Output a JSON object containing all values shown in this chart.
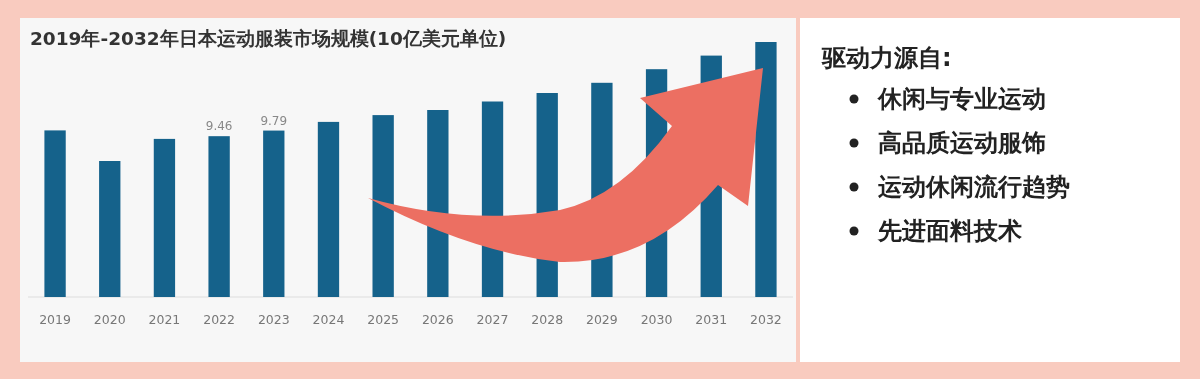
{
  "chart_data": [
    {
      "type": "bar",
      "title": "2019年-2032年日本运动服装市场规模(10亿美元单位)",
      "categories": [
        "2019",
        "2020",
        "2021",
        "2022",
        "2023",
        "2024",
        "2025",
        "2026",
        "2027",
        "2028",
        "2029",
        "2030",
        "2031",
        "2032"
      ],
      "values": [
        9.8,
        8.0,
        9.3,
        9.46,
        9.79,
        10.3,
        10.7,
        11.0,
        11.5,
        12.0,
        12.6,
        13.4,
        14.2,
        15.0
      ],
      "value_labels": [
        null,
        null,
        null,
        "9.46",
        "9.79",
        null,
        null,
        null,
        null,
        null,
        null,
        null,
        null,
        null
      ],
      "color": "#15628b",
      "tick_labels": "x"
    },
    {
      "type": "other",
      "title": "驱动力源自:",
      "annotations": [
        "休闲与专业运动",
        "高品质运动服饰",
        "运动休闲流行趋势",
        "先进面料技术"
      ]
    }
  ]
}
